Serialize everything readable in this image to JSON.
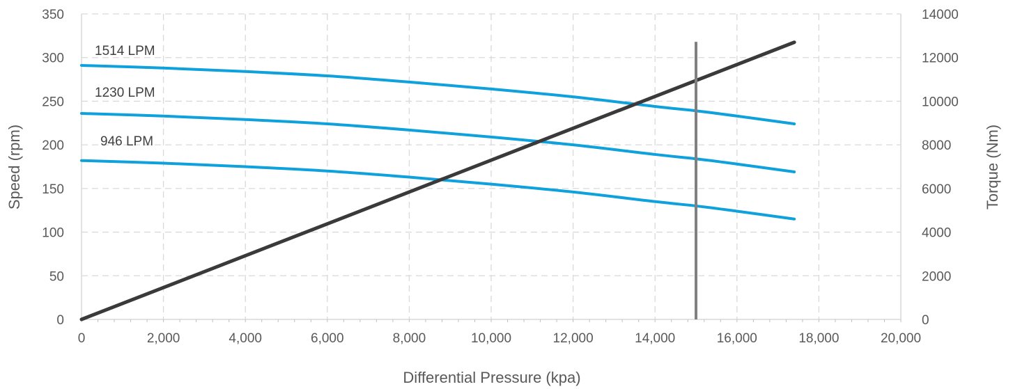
{
  "chart_data": {
    "type": "line",
    "xlabel": "Differential Pressure (kpa)",
    "ylabel": "Speed (rpm)",
    "y2label": "Torque (Nm)",
    "xlim": [
      0,
      20000
    ],
    "ylim": [
      0,
      350
    ],
    "y2lim": [
      0,
      14000
    ],
    "x_ticks": [
      0,
      2000,
      4000,
      6000,
      8000,
      10000,
      12000,
      14000,
      16000,
      18000,
      20000
    ],
    "x_tick_labels": [
      "0",
      "2,000",
      "4,000",
      "6,000",
      "8,000",
      "10,000",
      "12,000",
      "14,000",
      "16,000",
      "18,000",
      "20,000"
    ],
    "y_ticks": [
      0,
      50,
      100,
      150,
      200,
      250,
      300,
      350
    ],
    "y_tick_labels": [
      "0",
      "50",
      "100",
      "150",
      "200",
      "250",
      "300",
      "350"
    ],
    "y2_ticks": [
      0,
      2000,
      4000,
      6000,
      8000,
      10000,
      12000,
      14000
    ],
    "y2_tick_labels": [
      "0",
      "2000",
      "4000",
      "6000",
      "8000",
      "10000",
      "12000",
      "14000"
    ],
    "grid": true,
    "colors": {
      "speed": "#0ea1dc",
      "torque": "#3a3a3a",
      "marker": "#808080",
      "grid": "#d9d9d9",
      "text": "#595959"
    },
    "series": [
      {
        "name": "1514 LPM",
        "axis": "left",
        "x": [
          0,
          2000,
          4000,
          6000,
          8000,
          10000,
          12000,
          14000,
          15000,
          16000,
          17400
        ],
        "y": [
          291,
          288,
          284,
          279,
          272,
          264,
          255,
          244,
          239,
          233,
          224
        ]
      },
      {
        "name": "1230 LPM",
        "axis": "left",
        "x": [
          0,
          2000,
          4000,
          6000,
          8000,
          10000,
          12000,
          14000,
          15000,
          16000,
          17400
        ],
        "y": [
          236,
          233,
          229,
          224,
          217,
          209,
          200,
          189,
          184,
          178,
          169
        ]
      },
      {
        "name": "946 LPM",
        "axis": "left",
        "x": [
          0,
          2000,
          4000,
          6000,
          8000,
          10000,
          12000,
          14000,
          15000,
          16000,
          17400
        ],
        "y": [
          182,
          179,
          175,
          170,
          163,
          155,
          146,
          135,
          130,
          124,
          115
        ]
      },
      {
        "axis": "right",
        "x": [
          0,
          17400
        ],
        "y": [
          0,
          12700
        ]
      }
    ],
    "annotations": [
      {
        "type": "vertical-line",
        "x": 15000,
        "y_from": 0,
        "y_to": 318
      }
    ]
  }
}
